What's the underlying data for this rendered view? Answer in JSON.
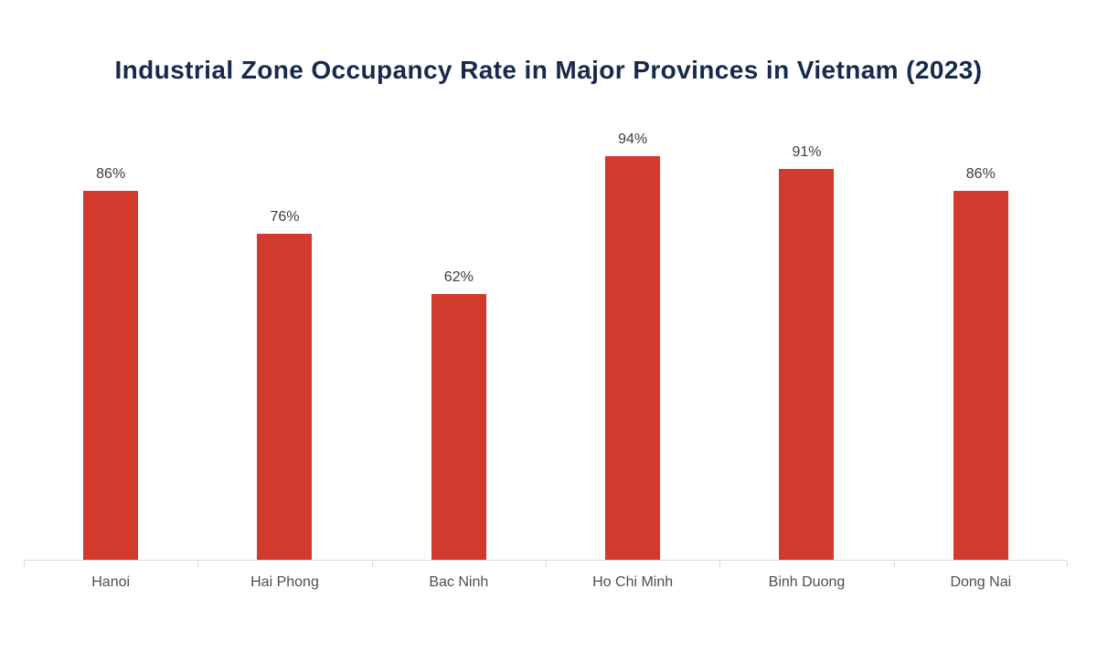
{
  "chart_data": {
    "type": "bar",
    "title": "Industrial Zone Occupancy Rate in Major Provinces in Vietnam (2023)",
    "categories": [
      "Hanoi",
      "Hai Phong",
      "Bac Ninh",
      "Ho Chi Minh",
      "Binh Duong",
      "Dong Nai"
    ],
    "values": [
      86,
      76,
      62,
      94,
      91,
      86
    ],
    "value_labels": [
      "86%",
      "76%",
      "62%",
      "94%",
      "91%",
      "86%"
    ],
    "xlabel": "",
    "ylabel": "",
    "ylim": [
      0,
      100
    ],
    "grid": false,
    "legend": false,
    "y_axis_visible": false,
    "colors": {
      "background": "#ffffff",
      "bar": "#d23a2d",
      "title": "#17294c",
      "value_label": "#3d3d3d",
      "axis_label": "#4f4f4f",
      "axis_line": "#dcdcdc"
    }
  }
}
